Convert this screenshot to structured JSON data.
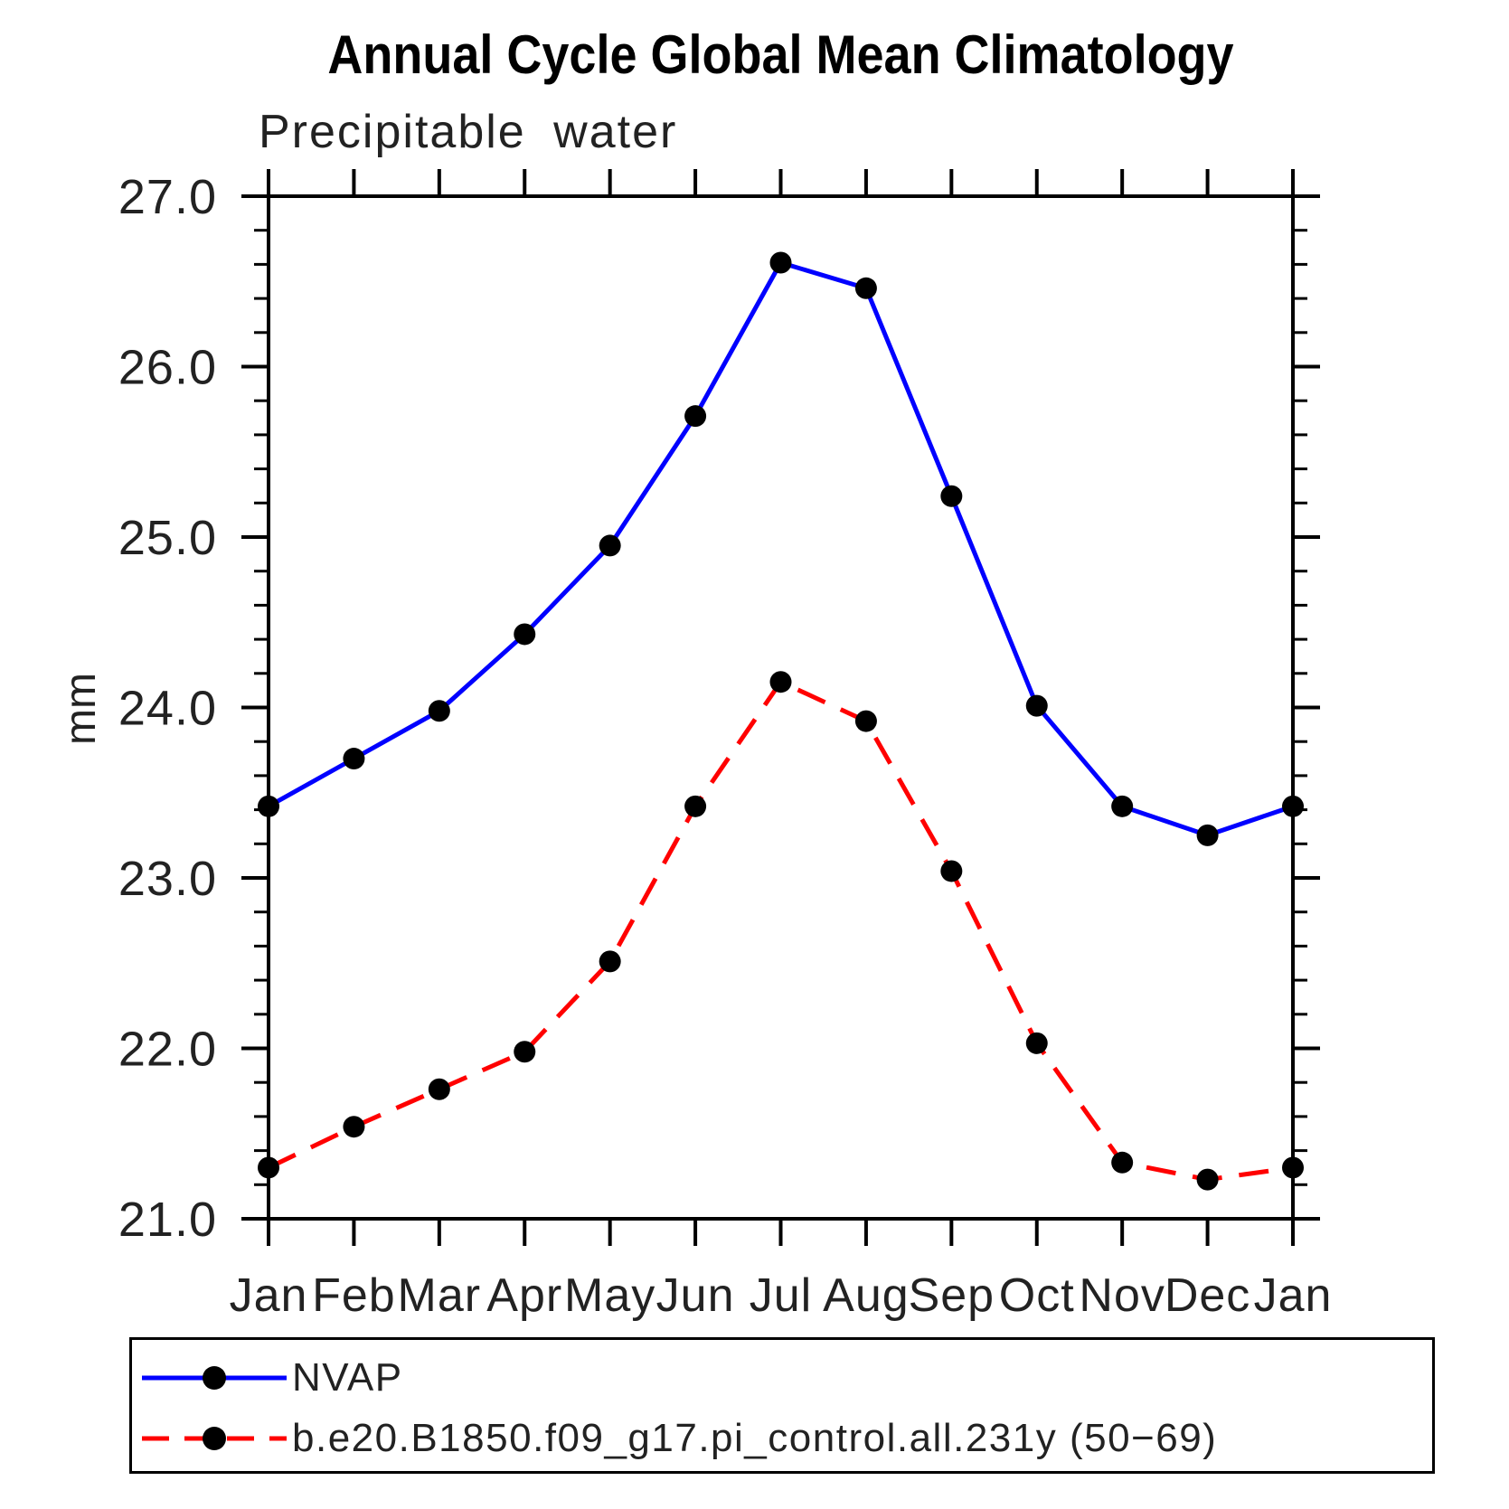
{
  "title": "Annual Cycle Global Mean Climatology",
  "subtitle": "Precipitable water",
  "ylabel": "mm",
  "chart_data": {
    "type": "line",
    "title": "Annual Cycle Global Mean Climatology",
    "subtitle": "Precipitable water",
    "xlabel": "",
    "ylabel": "mm",
    "categories": [
      "Jan",
      "Feb",
      "Mar",
      "Apr",
      "May",
      "Jun",
      "Jul",
      "Aug",
      "Sep",
      "Oct",
      "Nov",
      "Dec",
      "Jan"
    ],
    "ylim": [
      21.0,
      27.0
    ],
    "ytick_values": [
      27.0,
      26.0,
      25.0,
      24.0,
      23.0,
      22.0,
      21.0
    ],
    "ytick_labels": [
      "27.0",
      "26.0",
      "25.0",
      "24.0",
      "23.0",
      "22.0",
      "21.0"
    ],
    "ytick_minor_step": 0.2,
    "grid": false,
    "legend_position": "bottom",
    "frame_color": "#000000",
    "marker_color": "#000000",
    "series": [
      {
        "name": "NVAP",
        "color": "#0000ff",
        "line_style": "solid",
        "marker": "circle",
        "values": [
          23.42,
          23.7,
          23.98,
          24.43,
          24.95,
          25.71,
          26.61,
          26.46,
          25.24,
          24.01,
          23.42,
          23.25,
          23.42
        ]
      },
      {
        "name": "b.e20.B1850.f09_g17.pi_control.all.231y (50−69)",
        "color": "#ff0000",
        "line_style": "dashed",
        "marker": "circle",
        "values": [
          21.3,
          21.54,
          21.76,
          21.98,
          22.51,
          23.42,
          24.15,
          23.92,
          23.04,
          22.03,
          21.33,
          21.23,
          21.3
        ]
      }
    ]
  }
}
